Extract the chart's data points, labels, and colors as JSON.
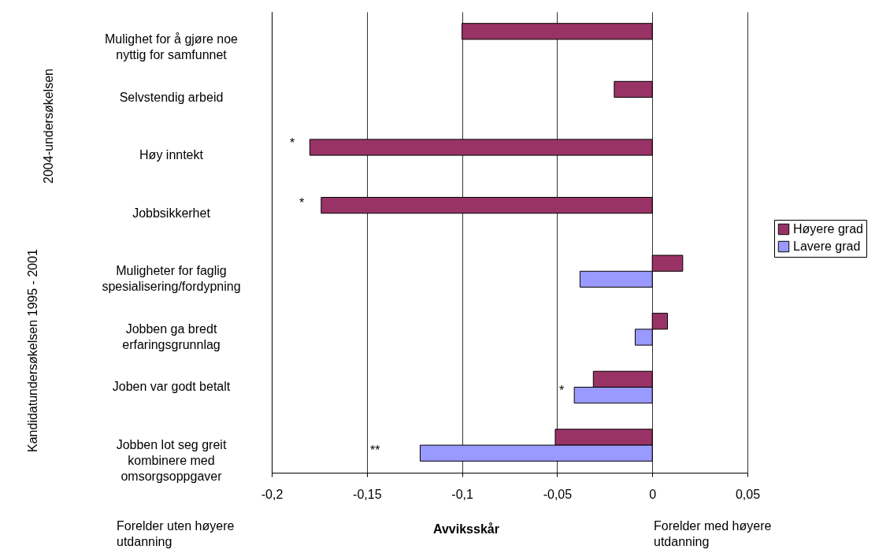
{
  "chart_data": {
    "type": "bar",
    "orientation": "horizontal",
    "xlabel": "Avviksskår",
    "categories": [
      "Mulighet for å gjøre noe nyttig for samfunnet",
      "Selvstendig arbeid",
      "Høy inntekt",
      "Jobbsikkerhet",
      "Muligheter for faglig spesialisering/fordypning",
      "Jobben ga bredt erfaringsgrunnlag",
      "Joben var godt betalt",
      "Jobben lot seg greit kombinere med omsorgsoppgaver"
    ],
    "series": [
      {
        "name": "Høyere grad",
        "color": "#993366",
        "values": [
          -0.1,
          -0.02,
          -0.18,
          -0.174,
          0.016,
          0.008,
          -0.031,
          -0.051
        ]
      },
      {
        "name": "Lavere grad",
        "color": "#9999ff",
        "values": [
          null,
          null,
          null,
          null,
          -0.038,
          -0.009,
          -0.041,
          -0.122
        ]
      }
    ],
    "xlim": [
      -0.2,
      0.05
    ],
    "xticks": [
      {
        "value": -0.2,
        "label": "-0,2"
      },
      {
        "value": -0.15,
        "label": "-0,15"
      },
      {
        "value": -0.1,
        "label": "-0,1"
      },
      {
        "value": -0.05,
        "label": "-0,05"
      },
      {
        "value": 0,
        "label": "0"
      },
      {
        "value": 0.05,
        "label": "0,05"
      }
    ],
    "grid": "x",
    "legend": "right",
    "annotations": [
      "*",
      "*",
      "*",
      "**",
      "2004-undersøkelsen",
      "Kandidatundersøkelsen 1995 - 2001",
      "Forelder uten høyere utdanning",
      "Forelder med høyere utdanning"
    ]
  }
}
